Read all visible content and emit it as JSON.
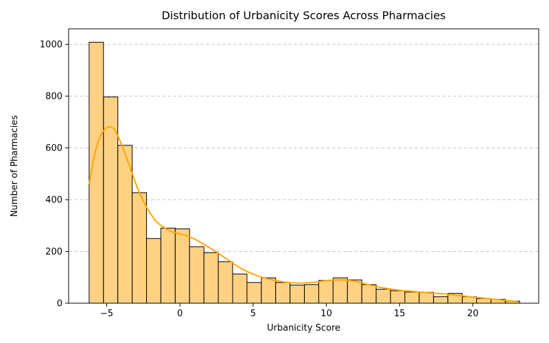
{
  "chart_data": {
    "type": "bar",
    "title": "Distribution of Urbanicity Scores Across Pharmacies",
    "xlabel": "Urbanicity Score",
    "ylabel": "Number of Pharmacies",
    "xlim": [
      -7.6,
      24.5
    ],
    "ylim": [
      0,
      1060
    ],
    "xticks": [
      -5,
      0,
      5,
      10,
      15,
      20
    ],
    "yticks": [
      0,
      200,
      400,
      600,
      800,
      1000
    ],
    "grid": "y-dashed",
    "bin_start": -6.2,
    "bin_width": 0.98,
    "values": [
      1008,
      797,
      610,
      427,
      250,
      290,
      287,
      218,
      195,
      160,
      113,
      80,
      98,
      80,
      70,
      72,
      88,
      98,
      90,
      72,
      54,
      48,
      43,
      42,
      25,
      38,
      25,
      18,
      15,
      8
    ],
    "bar_color": "#ffd182",
    "bar_edge_color": "#000000",
    "kde": {
      "color": "#ffa500",
      "x": [
        -6.2,
        -5.8,
        -5.4,
        -5.0,
        -4.7,
        -4.4,
        -4.0,
        -3.5,
        -3.0,
        -2.5,
        -2.0,
        -1.5,
        -1.0,
        -0.5,
        0.0,
        0.5,
        1.0,
        1.5,
        2.0,
        2.5,
        3.0,
        3.5,
        4.0,
        5.0,
        6.0,
        7.0,
        8.0,
        9.0,
        10.0,
        10.8,
        11.5,
        12.0,
        13.0,
        14.0,
        15.0,
        16.0,
        17.0,
        18.0,
        19.0,
        20.0,
        21.0,
        22.0,
        23.0
      ],
      "y": [
        460,
        580,
        650,
        678,
        680,
        665,
        615,
        540,
        460,
        395,
        345,
        310,
        290,
        275,
        268,
        260,
        248,
        232,
        215,
        198,
        178,
        160,
        140,
        112,
        94,
        83,
        78,
        80,
        87,
        90,
        88,
        84,
        70,
        58,
        50,
        45,
        40,
        36,
        30,
        24,
        18,
        12,
        7
      ]
    }
  }
}
